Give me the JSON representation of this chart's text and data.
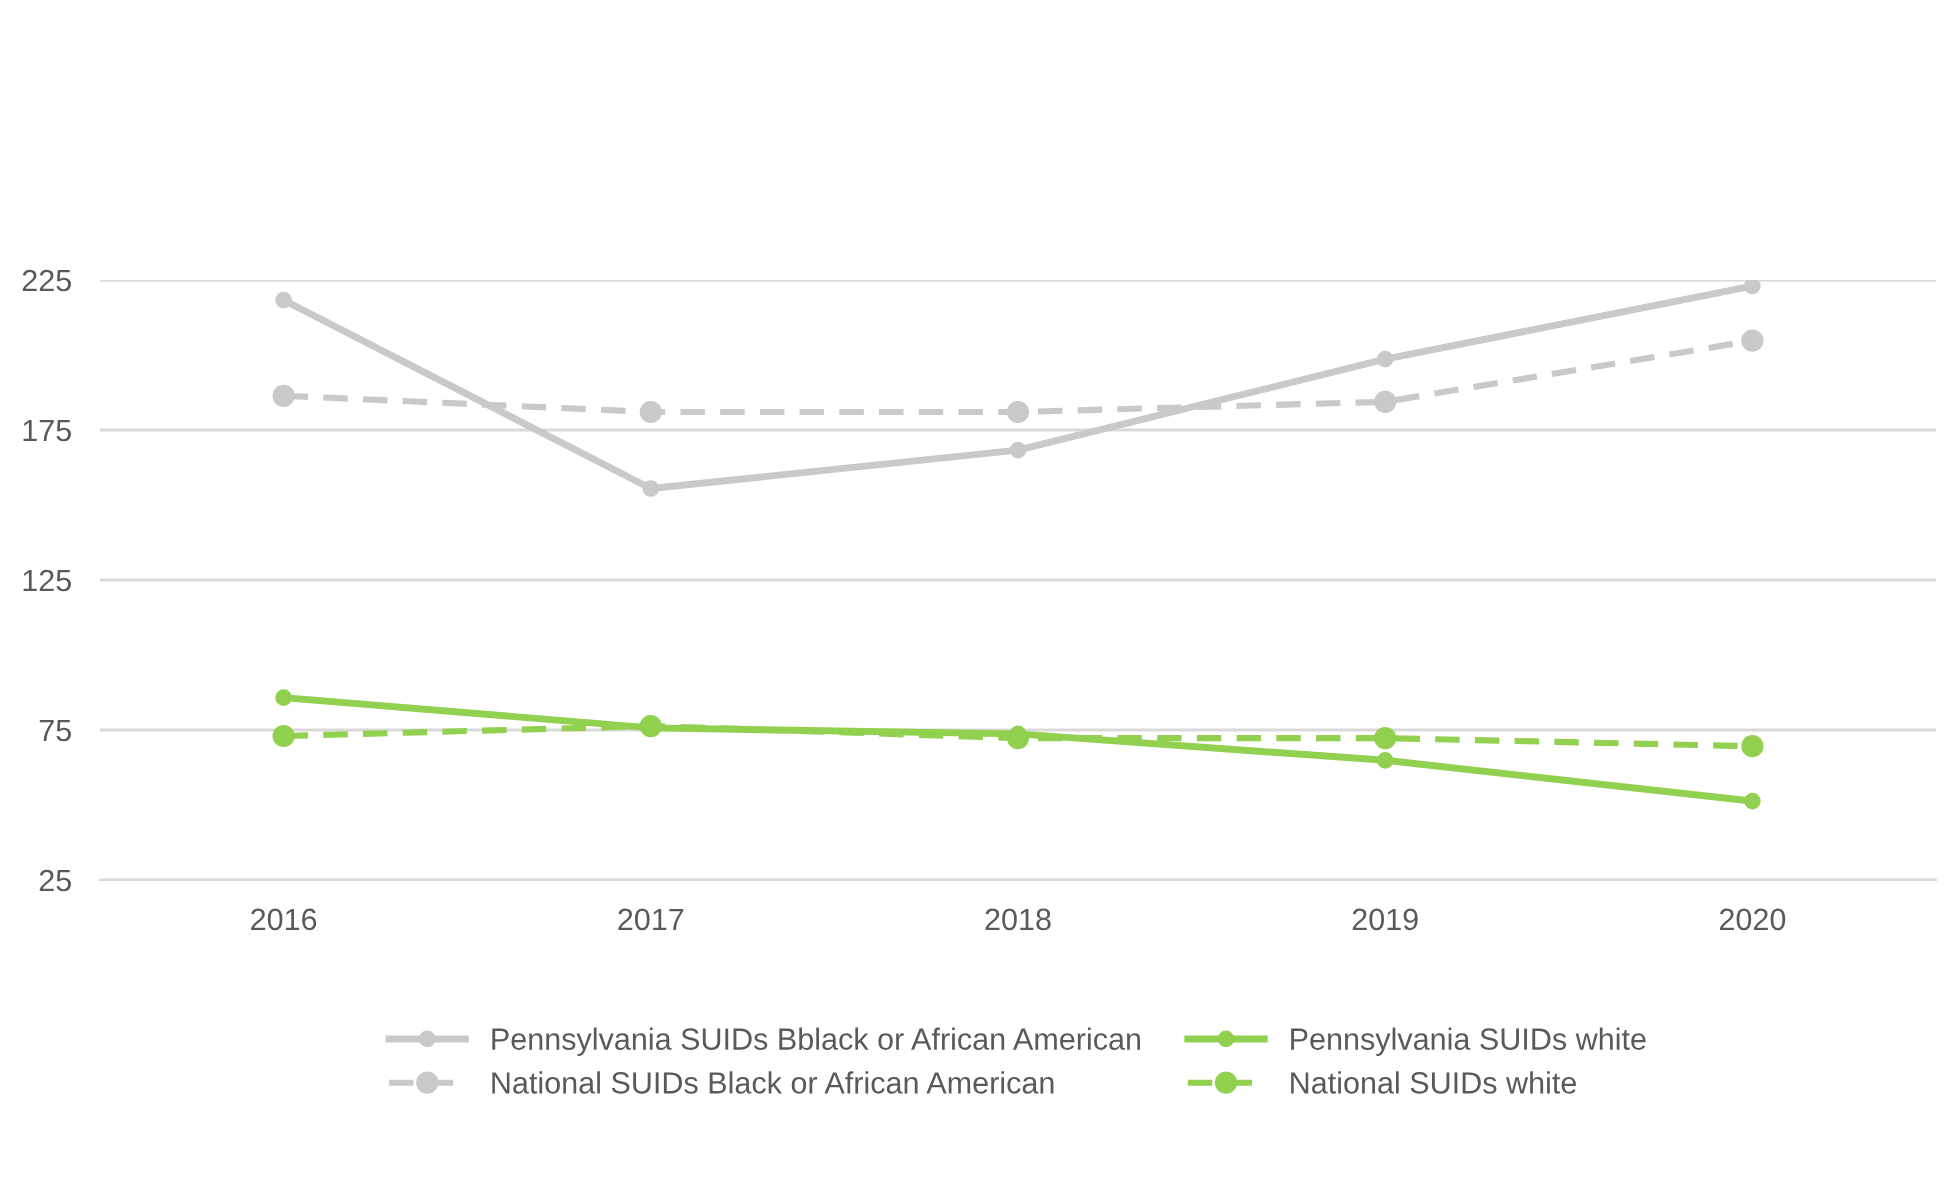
{
  "chart_data": {
    "type": "line",
    "categories": [
      "2016",
      "2017",
      "2018",
      "2019",
      "2020"
    ],
    "series": [
      {
        "name": "Pennsylvania SUIDs Bblack or African American",
        "color": "#c9c9c9",
        "line_style": "solid",
        "values": [
          218.3,
          155.5,
          168.3,
          198.6,
          223
        ]
      },
      {
        "name": "National SUIDs Black or African American",
        "color": "#c9c9c9",
        "line_style": "dashed",
        "values": [
          186.4,
          181,
          181,
          184.4,
          204.8
        ]
      },
      {
        "name": "Pennsylvania SUIDs white",
        "color": "#92d050",
        "line_style": "solid",
        "values": [
          85.8,
          75.7,
          73.7,
          64.9,
          51.3
        ]
      },
      {
        "name": "National SUIDs white",
        "color": "#92d050",
        "line_style": "dashed",
        "values": [
          73,
          76.3,
          72.3,
          72.3,
          69.6
        ]
      }
    ],
    "ylim": [
      25,
      225
    ],
    "yticks": [
      25,
      75,
      125,
      175,
      225
    ],
    "grid": "y",
    "legend": "bottom",
    "marker": "circle"
  }
}
